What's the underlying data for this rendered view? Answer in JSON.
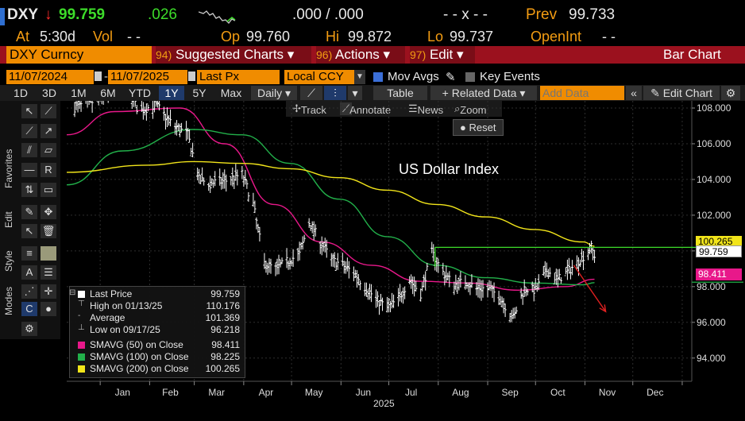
{
  "header": {
    "ticker": "DXY",
    "arrow": "↓",
    "last": "99.759",
    "change": ".026",
    "bidask": ".000 / .000",
    "size": "- - x - -",
    "prev_label": "Prev",
    "prev_value": "99.733",
    "at_label": "At",
    "at_time": "5:30d",
    "vol_label": "Vol",
    "vol_value": "- -",
    "op_label": "Op",
    "op_value": "99.760",
    "hi_label": "Hi",
    "hi_value": "99.872",
    "lo_label": "Lo",
    "lo_value": "99.737",
    "oi_label": "OpenInt",
    "oi_value": "- -"
  },
  "menubar": {
    "security": "DXY Curncy",
    "suggested_num": "94)",
    "suggested": "Suggested Charts ▾",
    "actions_num": "96)",
    "actions": "Actions ▾",
    "edit_num": "97)",
    "edit": "Edit ▾",
    "chart_type": "Bar Chart"
  },
  "params": {
    "start_date": "11/07/2024",
    "end_date": "11/07/2025",
    "field": "Last Px",
    "currency": "Local CCY",
    "mov_avgs": "Mov Avgs",
    "key_events": "Key Events"
  },
  "ranges": {
    "items": [
      "1D",
      "3D",
      "1M",
      "6M",
      "YTD",
      "1Y",
      "5Y",
      "Max"
    ],
    "selected": "1Y",
    "period": "Daily ▾",
    "table": "Table",
    "related": "+ Related Data ▾",
    "add_data_placeholder": "Add Data",
    "edit_chart": "Edit Chart"
  },
  "tools": {
    "track": "Track",
    "annotate": "Annotate",
    "news": "News",
    "zoom": "Zoom",
    "reset": "Reset"
  },
  "sidebar": {
    "favorites": "Favorites",
    "edit": "Edit",
    "style": "Style",
    "modes": "Modes"
  },
  "legend": {
    "items": [
      {
        "name": "Last Price",
        "value": "99.759",
        "color": "#ffffff"
      },
      {
        "name": "High on 01/13/25",
        "value": "110.176",
        "color": ""
      },
      {
        "name": "Average",
        "value": "101.369",
        "color": ""
      },
      {
        "name": "Low on 09/17/25",
        "value": "96.218",
        "color": ""
      },
      {
        "name": "SMAVG (50)  on Close",
        "value": "98.411",
        "color": "#e8188a"
      },
      {
        "name": "SMAVG (100)  on Close",
        "value": "98.225",
        "color": "#22b04a"
      },
      {
        "name": "SMAVG (200)  on Close",
        "value": "100.265",
        "color": "#f2e51a"
      }
    ]
  },
  "tags": {
    "sma200": "100.265",
    "last": "99.759",
    "sma50": "98.411"
  },
  "colors": {
    "orange": "#f08c00",
    "green": "#3ddc2a",
    "sma50": "#e8188a",
    "sma100": "#22b04a",
    "sma200": "#f2e51a",
    "resistance": "#3ddc2a",
    "projection": "#e02020"
  },
  "chart_data": {
    "type": "bar",
    "title": "US Dollar Index",
    "xlabel": "2025",
    "ylabel": "",
    "x_ticks": [
      "Jan",
      "Feb",
      "Mar",
      "Apr",
      "May",
      "Jun",
      "Jul",
      "Aug",
      "Sep",
      "Oct",
      "Nov",
      "Dec"
    ],
    "y_ticks": [
      "94.000",
      "96.000",
      "98.000",
      "100.000",
      "102.000",
      "104.000",
      "106.000",
      "108.000"
    ],
    "ylim": [
      92.7,
      108.4
    ],
    "xlim": [
      "2024-12-11",
      "2026-01-07"
    ],
    "grid": true,
    "last_price": 99.759,
    "resistance_level": 100.2,
    "price": {
      "dates": [
        "2024-12-15",
        "2025-01-05",
        "2025-01-13",
        "2025-01-25",
        "2025-02-05",
        "2025-02-15",
        "2025-02-25",
        "2025-03-04",
        "2025-03-10",
        "2025-03-20",
        "2025-03-31",
        "2025-04-07",
        "2025-04-14",
        "2025-04-21",
        "2025-04-28",
        "2025-05-06",
        "2025-05-12",
        "2025-05-20",
        "2025-05-26",
        "2025-06-02",
        "2025-06-09",
        "2025-06-16",
        "2025-06-23",
        "2025-06-30",
        "2025-07-07",
        "2025-07-14",
        "2025-07-21",
        "2025-07-28",
        "2025-08-04",
        "2025-08-11",
        "2025-08-18",
        "2025-08-25",
        "2025-09-01",
        "2025-09-08",
        "2025-09-17",
        "2025-09-24",
        "2025-10-01",
        "2025-10-08",
        "2025-10-15",
        "2025-10-22",
        "2025-10-30",
        "2025-11-05",
        "2025-11-07"
      ],
      "values": [
        108.0,
        108.6,
        110.176,
        107.8,
        108.2,
        107.1,
        106.5,
        104.0,
        103.8,
        103.9,
        104.3,
        102.6,
        99.3,
        99.0,
        99.4,
        99.8,
        101.6,
        100.4,
        99.5,
        99.2,
        98.8,
        98.0,
        97.3,
        96.8,
        97.3,
        98.4,
        97.6,
        99.9,
        98.8,
        98.1,
        98.3,
        97.9,
        97.9,
        97.5,
        96.218,
        97.9,
        97.8,
        98.9,
        98.4,
        98.9,
        99.6,
        100.2,
        99.759
      ]
    },
    "series": [
      {
        "name": "SMAVG (50)  on Close",
        "dates": [
          "2024-12-11",
          "2025-01-10",
          "2025-02-20",
          "2025-03-20",
          "2025-04-20",
          "2025-05-20",
          "2025-06-20",
          "2025-07-20",
          "2025-08-20",
          "2025-09-20",
          "2025-10-20",
          "2025-11-07"
        ],
        "values": [
          106.5,
          107.8,
          108.0,
          106.0,
          102.6,
          100.5,
          99.2,
          98.3,
          98.2,
          97.8,
          98.0,
          98.411
        ]
      },
      {
        "name": "SMAVG (100)  on Close",
        "dates": [
          "2024-12-11",
          "2025-01-15",
          "2025-02-28",
          "2025-03-31",
          "2025-04-30",
          "2025-05-31",
          "2025-06-30",
          "2025-07-31",
          "2025-08-31",
          "2025-09-30",
          "2025-10-31",
          "2025-11-07"
        ],
        "values": [
          103.7,
          105.6,
          106.8,
          106.5,
          104.9,
          102.9,
          100.8,
          99.2,
          98.5,
          98.2,
          98.1,
          98.225
        ]
      },
      {
        "name": "SMAVG (200)  on Close",
        "dates": [
          "2024-12-11",
          "2025-01-31",
          "2025-02-28",
          "2025-03-31",
          "2025-04-30",
          "2025-05-31",
          "2025-06-30",
          "2025-07-31",
          "2025-08-31",
          "2025-09-30",
          "2025-10-31",
          "2025-11-07"
        ],
        "values": [
          104.4,
          104.8,
          105.0,
          104.9,
          104.6,
          104.1,
          103.4,
          102.6,
          101.9,
          101.2,
          100.5,
          100.265
        ]
      }
    ],
    "projection": {
      "from_date": "2025-10-25",
      "from_value": 99.2,
      "to_date": "2025-11-14",
      "to_value": 96.6
    }
  }
}
